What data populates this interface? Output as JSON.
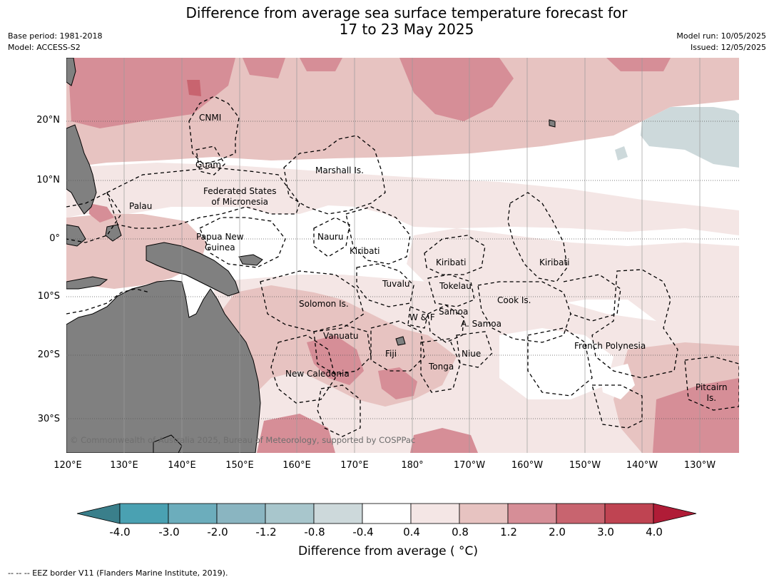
{
  "title": {
    "line1": "Difference from average sea surface temperature forecast for",
    "line2": "17 to 23 May 2025"
  },
  "meta": {
    "base_period": "Base period: 1981-2018",
    "model": "Model: ACCESS-S2",
    "model_run": "Model run: 10/05/2025",
    "issued": "Issued: 12/05/2025"
  },
  "axes": {
    "lat_ticks": [
      "20°N",
      "10°N",
      "0°",
      "10°S",
      "20°S",
      "30°S"
    ],
    "lon_ticks": [
      "120°E",
      "130°E",
      "140°E",
      "150°E",
      "160°E",
      "170°E",
      "180°",
      "170°W",
      "160°W",
      "150°W",
      "140°W",
      "130°W"
    ]
  },
  "regions": [
    {
      "name": "cnmi",
      "text": "CNMI"
    },
    {
      "name": "guam",
      "text": "Guam"
    },
    {
      "name": "marshall",
      "text": "Marshall Is."
    },
    {
      "name": "fsm",
      "text": "Federated States\nof Micronesia"
    },
    {
      "name": "palau",
      "text": "Palau"
    },
    {
      "name": "png",
      "text": "Papua New\nGuinea"
    },
    {
      "name": "nauru",
      "text": "Nauru"
    },
    {
      "name": "kiribati-west",
      "text": "Kiribati"
    },
    {
      "name": "kiribati-central",
      "text": "Kiribati"
    },
    {
      "name": "kiribati-east",
      "text": "Kiribati"
    },
    {
      "name": "tuvalu",
      "text": "Tuvalu"
    },
    {
      "name": "tokelau",
      "text": "Tokelau"
    },
    {
      "name": "solomon",
      "text": "Solomon Is."
    },
    {
      "name": "cook",
      "text": "Cook Is."
    },
    {
      "name": "samoa",
      "text": "Samoa"
    },
    {
      "name": "wallis-futuna",
      "text": "W & F"
    },
    {
      "name": "american-samoa",
      "text": "A. Samoa"
    },
    {
      "name": "vanuatu",
      "text": "Vanuatu"
    },
    {
      "name": "fiji",
      "text": "Fiji"
    },
    {
      "name": "niue",
      "text": "Niue"
    },
    {
      "name": "tonga",
      "text": "Tonga"
    },
    {
      "name": "french-polynesia",
      "text": "French Polynesia"
    },
    {
      "name": "new-caledonia",
      "text": "New Caledonia"
    },
    {
      "name": "pitcairn",
      "text": "Pitcairn\nIs."
    }
  ],
  "copyright": "© Commonwealth of Australia 2025, Bureau of Meteorology, supported by COSPPac",
  "colorbar": {
    "label": "Difference from average ( °C)",
    "ticks": [
      "-4.0",
      "-3.0",
      "-2.0",
      "-1.2",
      "-0.8",
      "-0.4",
      "0.4",
      "0.8",
      "1.2",
      "2.0",
      "3.0",
      "4.0"
    ],
    "colors": [
      "#3a7f8b",
      "#4aa1b2",
      "#6cadbc",
      "#8ab5c1",
      "#a8c6cc",
      "#cdd9db",
      "#ffffff",
      "#f4e6e5",
      "#e7c3c1",
      "#d68e97",
      "#c8646f",
      "#bf4452",
      "#b01c37"
    ]
  },
  "footnote": "--  --  -- EEZ border V11 (Flanders Marine Institute, 2019)."
}
